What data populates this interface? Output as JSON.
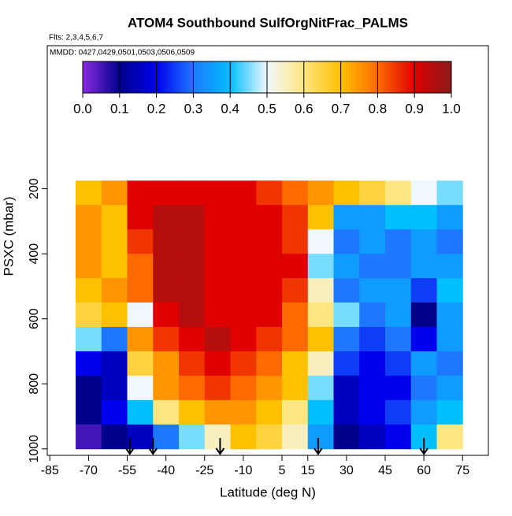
{
  "chart_data": {
    "type": "heatmap",
    "title": "ATOM4 Southbound SulfOrgNitFrac_PALMS",
    "subtitle": "Flts: 2,3,4,5,6,7",
    "annotation": "MMDD: 0427,0429,0501,0503,0506,0509",
    "xlabel": "Latitude (deg N)",
    "ylabel": "PSXC (mbar)",
    "xlim": [
      -86,
      85
    ],
    "ylim": [
      1020,
      -240
    ],
    "xticks": [
      -85,
      -70,
      -55,
      -40,
      -25,
      -10,
      5,
      15,
      30,
      45,
      60,
      75
    ],
    "yticks": [
      200,
      400,
      600,
      800,
      1000
    ],
    "x_edges": [
      -75,
      -65,
      -55,
      -45,
      -35,
      -25,
      -15,
      -5,
      5,
      15,
      25,
      35,
      45,
      55,
      65,
      75
    ],
    "y_edges": [
      175,
      250,
      325,
      400,
      475,
      550,
      625,
      700,
      775,
      850,
      925,
      1000
    ],
    "z": [
      [
        0.7,
        0.75,
        0.9,
        0.9,
        0.9,
        0.9,
        0.9,
        0.85,
        0.8,
        0.75,
        0.7,
        0.65,
        0.6,
        0.5,
        0.45
      ],
      [
        0.75,
        0.7,
        0.9,
        0.95,
        0.95,
        0.9,
        0.9,
        0.9,
        0.85,
        0.7,
        0.35,
        0.35,
        0.4,
        0.4,
        0.35
      ],
      [
        0.75,
        0.7,
        0.85,
        0.95,
        0.95,
        0.9,
        0.9,
        0.9,
        0.85,
        0.5,
        0.3,
        0.35,
        0.3,
        0.35,
        0.3
      ],
      [
        0.75,
        0.7,
        0.8,
        0.95,
        0.95,
        0.9,
        0.9,
        0.9,
        0.9,
        0.45,
        0.35,
        0.3,
        0.3,
        0.35,
        0.35
      ],
      [
        0.7,
        0.75,
        0.8,
        0.95,
        0.95,
        0.9,
        0.9,
        0.9,
        0.85,
        0.55,
        0.3,
        0.35,
        0.35,
        0.25,
        0.4
      ],
      [
        0.65,
        0.7,
        0.5,
        0.9,
        0.95,
        0.9,
        0.9,
        0.9,
        0.8,
        0.6,
        0.45,
        0.3,
        0.35,
        0.1,
        0.35
      ],
      [
        0.45,
        0.3,
        0.75,
        0.85,
        0.9,
        0.95,
        0.9,
        0.85,
        0.8,
        0.7,
        0.3,
        0.25,
        0.3,
        0.2,
        0.35
      ],
      [
        0.2,
        0.15,
        0.65,
        0.75,
        0.85,
        0.9,
        0.85,
        0.8,
        0.7,
        0.55,
        0.25,
        0.2,
        0.25,
        0.35,
        0.3
      ],
      [
        0.1,
        0.15,
        0.5,
        0.75,
        0.8,
        0.85,
        0.8,
        0.75,
        0.7,
        0.45,
        0.15,
        0.2,
        0.2,
        0.3,
        0.35
      ],
      [
        0.1,
        0.2,
        0.4,
        0.6,
        0.7,
        0.75,
        0.75,
        0.7,
        0.6,
        0.4,
        0.15,
        0.2,
        0.25,
        0.35,
        0.4
      ],
      [
        0.05,
        0.1,
        0.15,
        0.3,
        0.45,
        0.55,
        0.7,
        0.65,
        0.55,
        0.35,
        0.1,
        0.15,
        0.2,
        0.4,
        0.6
      ]
    ],
    "colorbar": {
      "lim": [
        0,
        1
      ],
      "ticks": [
        {
          "value": 0,
          "label": "0.0"
        },
        0.1,
        0.2,
        0.3,
        0.4,
        0.5,
        0.6,
        0.7,
        0.8,
        0.9,
        {
          "value": 1,
          "label": "1.0"
        }
      ],
      "colors": [
        "#8a2be2",
        "#00008b",
        "#0000ee",
        "#1e78ff",
        "#00bfff",
        "#f0f8ff",
        "#ffe680",
        "#ffc000",
        "#ff6a00",
        "#e00000",
        "#8b1a1a"
      ]
    },
    "arrows": [
      -54,
      -45,
      -19,
      19,
      60
    ]
  }
}
